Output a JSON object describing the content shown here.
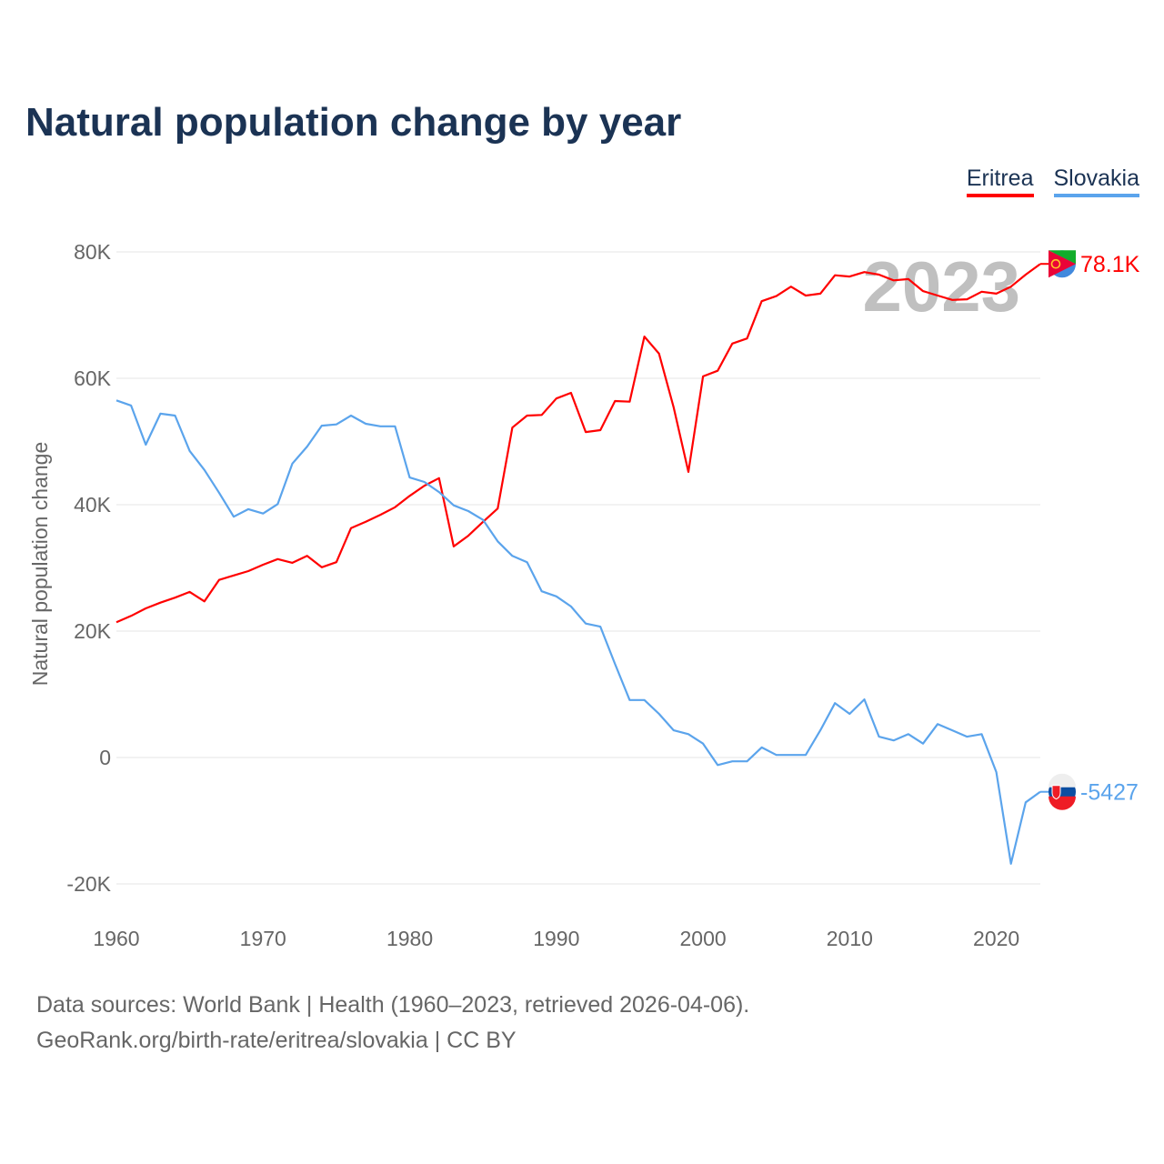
{
  "chart_data": {
    "type": "line",
    "title": "Natural population change by year",
    "xlabel": "",
    "ylabel": "Natural population change",
    "xlim": [
      1960,
      2023
    ],
    "ylim": [
      -20000,
      80000
    ],
    "x_ticks": [
      1960,
      1970,
      1980,
      1990,
      2000,
      2010,
      2020
    ],
    "y_ticks": [
      -20000,
      0,
      20000,
      40000,
      60000,
      80000
    ],
    "y_tick_labels": [
      "-20K",
      "0",
      "20K",
      "40K",
      "60K",
      "80K"
    ],
    "grid": true,
    "legend_position": "top-right",
    "year_watermark": "2023",
    "x": [
      1960,
      1961,
      1962,
      1963,
      1964,
      1965,
      1966,
      1967,
      1968,
      1969,
      1970,
      1971,
      1972,
      1973,
      1974,
      1975,
      1976,
      1977,
      1978,
      1979,
      1980,
      1981,
      1982,
      1983,
      1984,
      1985,
      1986,
      1987,
      1988,
      1989,
      1990,
      1991,
      1992,
      1993,
      1994,
      1995,
      1996,
      1997,
      1998,
      1999,
      2000,
      2001,
      2002,
      2003,
      2004,
      2005,
      2006,
      2007,
      2008,
      2009,
      2010,
      2011,
      2012,
      2013,
      2014,
      2015,
      2016,
      2017,
      2018,
      2019,
      2020,
      2021,
      2022,
      2023
    ],
    "series": [
      {
        "name": "Eritrea",
        "color": "#ff0000",
        "end_label": "78.1K",
        "values": [
          21400,
          22400,
          23600,
          24500,
          25300,
          26200,
          24700,
          28100,
          28800,
          29500,
          30500,
          31400,
          30800,
          31900,
          30100,
          30900,
          36300,
          37300,
          38400,
          39600,
          41400,
          43000,
          44200,
          33400,
          35100,
          37300,
          39400,
          52200,
          54100,
          54200,
          56800,
          57700,
          51500,
          51800,
          56400,
          56300,
          66600,
          63900,
          55400,
          45200,
          60300,
          61200,
          65500,
          66300,
          72200,
          73000,
          74500,
          73100,
          73400,
          76300,
          76100,
          76800,
          76400,
          75500,
          75700,
          73800,
          73100,
          72400,
          72500,
          73700,
          73400,
          74500,
          76400,
          78100
        ]
      },
      {
        "name": "Slovakia",
        "color": "#5ba4ec",
        "end_label": "-5427",
        "values": [
          56500,
          55700,
          49500,
          54400,
          54100,
          48500,
          45500,
          41900,
          38100,
          39300,
          38600,
          40100,
          46500,
          49200,
          52500,
          52700,
          54100,
          52800,
          52400,
          52400,
          44300,
          43600,
          42000,
          39900,
          39000,
          37600,
          34200,
          31900,
          30900,
          26300,
          25500,
          23900,
          21200,
          20700,
          14800,
          9100,
          9100,
          6900,
          4300,
          3700,
          2200,
          -1200,
          -600,
          -600,
          1600,
          400,
          400,
          400,
          4300,
          8600,
          6900,
          9200,
          3300,
          2700,
          3700,
          2200,
          5300,
          4300,
          3300,
          3700,
          -2300,
          -16800,
          -7100,
          -5427
        ]
      }
    ]
  },
  "footer": {
    "line1": "Data sources: World Bank | Health (1960–2023, retrieved 2026-04-06).",
    "line2": "GeoRank.org/birth-rate/eritrea/slovakia | CC BY"
  }
}
